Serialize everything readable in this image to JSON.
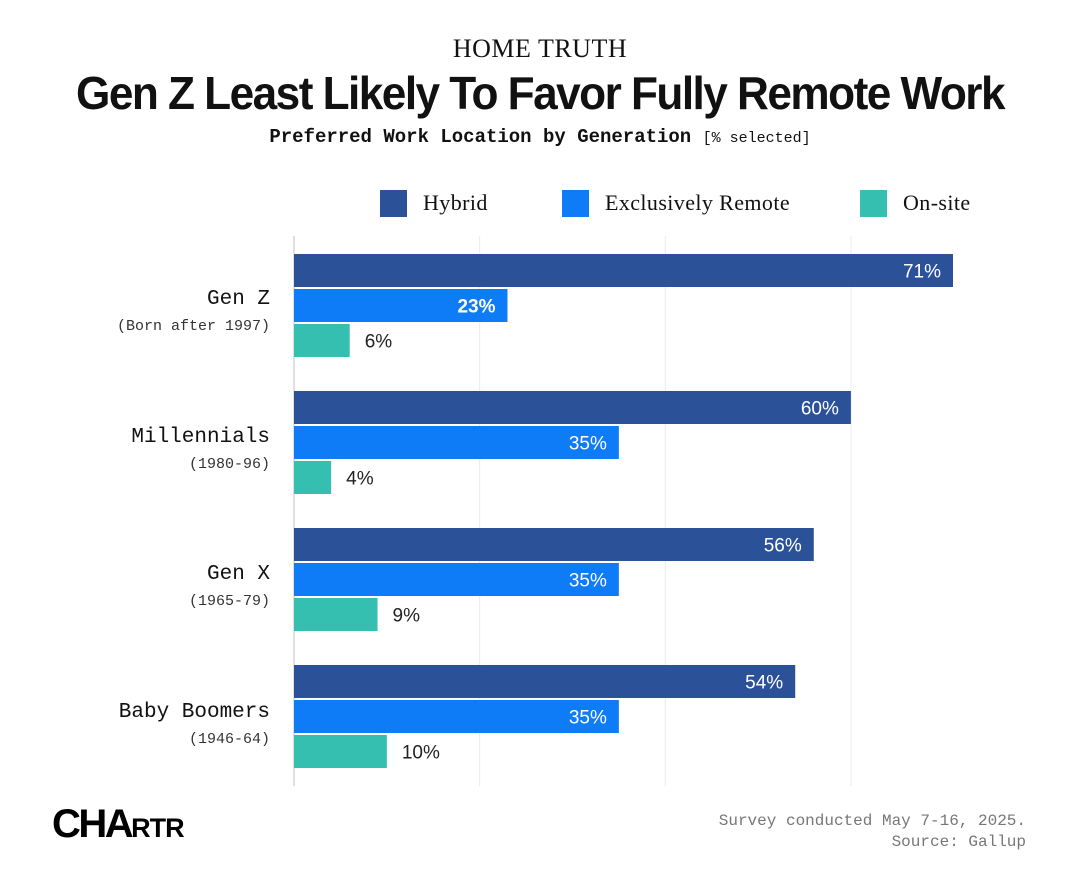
{
  "header": {
    "kicker": "HOME TRUTH",
    "title": "Gen Z Least Likely To Favor Fully Remote Work",
    "subtitle": "Preferred Work Location by Generation",
    "unit": "[% selected]"
  },
  "legend": [
    {
      "label": "Hybrid",
      "color": "#2b5299"
    },
    {
      "label": "Exclusively Remote",
      "color": "#0f7cf7"
    },
    {
      "label": "On-site",
      "color": "#35bfb0"
    }
  ],
  "chart_data": {
    "type": "bar",
    "orientation": "horizontal",
    "title": "Gen Z Least Likely To Favor Fully Remote Work",
    "subtitle": "Preferred Work Location by Generation [% selected]",
    "categories": [
      "Gen Z",
      "Millennials",
      "Gen X",
      "Baby Boomers"
    ],
    "category_subtitles": [
      "(Born after 1997)",
      "(1980-96)",
      "(1965-79)",
      "(1946-64)"
    ],
    "series": [
      {
        "name": "Hybrid",
        "color": "#2b5299",
        "values": [
          71,
          60,
          56,
          54
        ],
        "labels": [
          "71%",
          "60%",
          "56%",
          "54%"
        ]
      },
      {
        "name": "Exclusively Remote",
        "color": "#0f7cf7",
        "values": [
          23,
          35,
          35,
          35
        ],
        "labels": [
          "23%",
          "35%",
          "35%",
          "35%"
        ]
      },
      {
        "name": "On-site",
        "color": "#35bfb0",
        "values": [
          6,
          4,
          9,
          10
        ],
        "labels": [
          "6%",
          "4%",
          "9%",
          "10%"
        ]
      }
    ],
    "xlim": [
      0,
      80
    ],
    "grid": true,
    "legend_position": "top-right"
  },
  "footer": {
    "logo": "CHARTR",
    "note_line1": "Survey conducted May 7-16, 2025.",
    "note_line2": "Source: Gallup"
  }
}
